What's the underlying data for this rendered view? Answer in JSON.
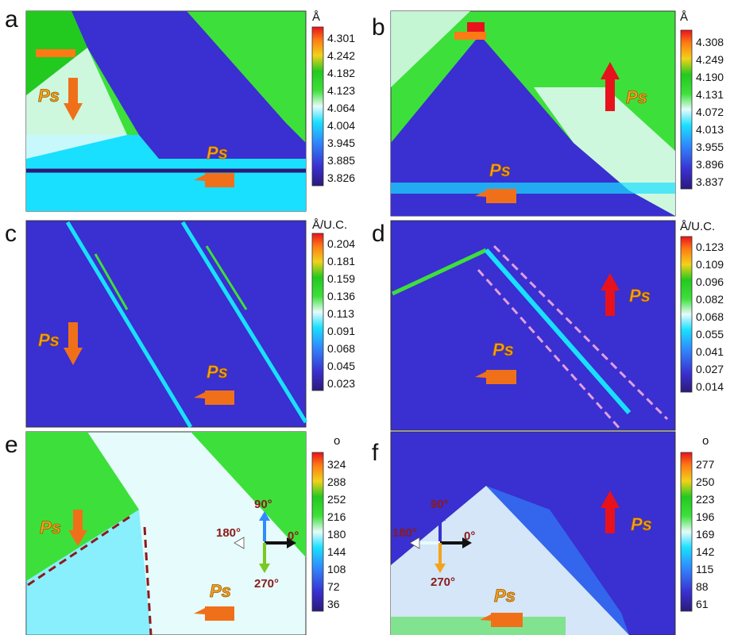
{
  "figure": {
    "panels": [
      {
        "letter": "a",
        "colorbar": {
          "unit": "Å",
          "ticks": [
            "4.301",
            "4.242",
            "4.182",
            "4.123",
            "4.064",
            "4.004",
            "3.945",
            "3.885",
            "3.826"
          ]
        },
        "map_type": "lattice-parameter",
        "ps_label": "Ps"
      },
      {
        "letter": "b",
        "colorbar": {
          "unit": "Å",
          "ticks": [
            "4.308",
            "4.249",
            "4.190",
            "4.131",
            "4.072",
            "4.013",
            "3.955",
            "3.896",
            "3.837"
          ]
        },
        "map_type": "lattice-parameter",
        "ps_label": "Ps"
      },
      {
        "letter": "c",
        "colorbar": {
          "unit": "Å/U.C.",
          "ticks": [
            "0.204",
            "0.181",
            "0.159",
            "0.136",
            "0.113",
            "0.091",
            "0.068",
            "0.045",
            "0.023"
          ]
        },
        "map_type": "gradient",
        "ps_label": "Ps"
      },
      {
        "letter": "d",
        "colorbar": {
          "unit": "Å/U.C.",
          "ticks": [
            "0.123",
            "0.109",
            "0.096",
            "0.082",
            "0.068",
            "0.055",
            "0.041",
            "0.027",
            "0.014"
          ]
        },
        "map_type": "gradient",
        "ps_label": "Ps"
      },
      {
        "letter": "e",
        "colorbar": {
          "unit": "o",
          "ticks": [
            "324",
            "288",
            "252",
            "216",
            "180",
            "144",
            "108",
            "72",
            "36"
          ]
        },
        "map_type": "angle",
        "ps_label": "Ps",
        "compass": {
          "up": "90°",
          "left": "180°",
          "right": "0°",
          "down": "270°"
        }
      },
      {
        "letter": "f",
        "colorbar": {
          "unit": "o",
          "ticks": [
            "277",
            "250",
            "223",
            "196",
            "169",
            "142",
            "115",
            "88",
            "61"
          ]
        },
        "map_type": "angle",
        "ps_label": "Ps",
        "compass": {
          "up": "90°",
          "left": "180°",
          "right": "0°",
          "down": "270°"
        }
      }
    ],
    "colors": {
      "colormap": [
        "#2b1a7a",
        "#3a2fd0",
        "#2f8cff",
        "#19e0ff",
        "#e6fbfb",
        "#3de03a",
        "#22c91f",
        "#f2d21a",
        "#ff7a14",
        "#e8121c"
      ],
      "domain_wall_dashed_e": "#8b1a1a",
      "domain_wall_dashed_d": "#e0a0e0",
      "arrow_gradient": [
        "#f7b324",
        "#e8121c"
      ]
    }
  }
}
